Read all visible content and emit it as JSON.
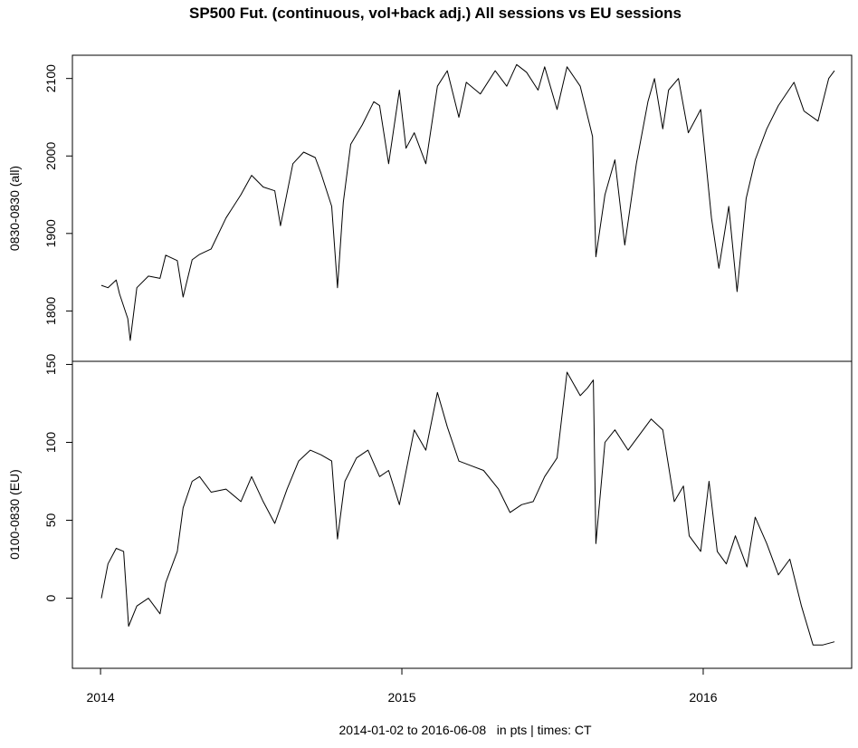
{
  "chart_data": [
    {
      "type": "line",
      "title": "SP500 Fut. (continuous, vol+back adj.) All sessions vs EU sessions",
      "xlabel": "2014-01-02 to 2016-06-08   in pts | times: CT",
      "ylabel": "0830-0830 (all)",
      "xlim": [
        "2014-01-02",
        "2016-06-08"
      ],
      "ylim": [
        1735,
        2130
      ],
      "x_ticks": [
        "2014",
        "2015",
        "2016"
      ],
      "y_ticks": [
        1800,
        1900,
        2000,
        2100
      ],
      "grid": false,
      "series": [
        {
          "color": "#000000",
          "x": [
            "2014-01-02",
            "2014-01-10",
            "2014-01-20",
            "2014-01-24",
            "2014-02-03",
            "2014-02-06",
            "2014-02-14",
            "2014-02-28",
            "2014-03-14",
            "2014-03-21",
            "2014-04-04",
            "2014-04-11",
            "2014-04-22",
            "2014-05-01",
            "2014-05-15",
            "2014-06-02",
            "2014-06-20",
            "2014-07-03",
            "2014-07-17",
            "2014-07-31",
            "2014-08-07",
            "2014-08-22",
            "2014-09-04",
            "2014-09-18",
            "2014-09-25",
            "2014-10-08",
            "2014-10-15",
            "2014-10-22",
            "2014-10-31",
            "2014-11-14",
            "2014-11-28",
            "2014-12-05",
            "2014-12-16",
            "2014-12-29",
            "2015-01-06",
            "2015-01-16",
            "2015-01-30",
            "2015-02-13",
            "2015-02-25",
            "2015-03-11",
            "2015-03-20",
            "2015-04-06",
            "2015-04-24",
            "2015-05-08",
            "2015-05-20",
            "2015-06-01",
            "2015-06-15",
            "2015-06-23",
            "2015-07-08",
            "2015-07-20",
            "2015-08-05",
            "2015-08-20",
            "2015-08-24",
            "2015-09-04",
            "2015-09-16",
            "2015-09-28",
            "2015-10-12",
            "2015-10-26",
            "2015-11-03",
            "2015-11-13",
            "2015-11-20",
            "2015-12-02",
            "2015-12-14",
            "2015-12-29",
            "2016-01-11",
            "2016-01-20",
            "2016-02-01",
            "2016-02-11",
            "2016-02-22",
            "2016-03-04",
            "2016-03-18",
            "2016-04-01",
            "2016-04-20",
            "2016-05-02",
            "2016-05-19",
            "2016-06-01",
            "2016-06-08"
          ],
          "y": [
            1833,
            1830,
            1840,
            1822,
            1790,
            1762,
            1830,
            1845,
            1842,
            1872,
            1865,
            1818,
            1866,
            1873,
            1880,
            1920,
            1950,
            1975,
            1960,
            1955,
            1910,
            1990,
            2005,
            1998,
            1978,
            1935,
            1830,
            1940,
            2015,
            2040,
            2070,
            2065,
            1990,
            2085,
            2010,
            2030,
            1990,
            2090,
            2110,
            2050,
            2095,
            2080,
            2110,
            2090,
            2118,
            2108,
            2085,
            2115,
            2060,
            2115,
            2090,
            2025,
            1870,
            1950,
            1995,
            1885,
            1990,
            2070,
            2100,
            2035,
            2085,
            2100,
            2030,
            2060,
            1920,
            1855,
            1935,
            1825,
            1945,
            1995,
            2035,
            2065,
            2095,
            2058,
            2045,
            2100,
            2110
          ]
        }
      ]
    },
    {
      "type": "line",
      "title": "",
      "xlabel": "",
      "ylabel": "0100-0830 (EU)",
      "xlim": [
        "2014-01-02",
        "2016-06-08"
      ],
      "ylim": [
        -45,
        152
      ],
      "x_ticks": [
        "2014",
        "2015",
        "2016"
      ],
      "y_ticks": [
        0,
        50,
        100,
        150
      ],
      "grid": false,
      "series": [
        {
          "color": "#000000",
          "x": [
            "2014-01-02",
            "2014-01-10",
            "2014-01-20",
            "2014-01-29",
            "2014-02-04",
            "2014-02-14",
            "2014-02-28",
            "2014-03-14",
            "2014-03-21",
            "2014-04-04",
            "2014-04-11",
            "2014-04-22",
            "2014-05-01",
            "2014-05-15",
            "2014-06-02",
            "2014-06-20",
            "2014-07-03",
            "2014-07-17",
            "2014-07-31",
            "2014-08-15",
            "2014-08-29",
            "2014-09-12",
            "2014-09-25",
            "2014-10-08",
            "2014-10-15",
            "2014-10-24",
            "2014-11-07",
            "2014-11-21",
            "2014-12-05",
            "2014-12-16",
            "2014-12-29",
            "2015-01-16",
            "2015-01-30",
            "2015-02-13",
            "2015-02-25",
            "2015-03-11",
            "2015-03-26",
            "2015-04-10",
            "2015-04-28",
            "2015-05-12",
            "2015-05-26",
            "2015-06-09",
            "2015-06-23",
            "2015-07-08",
            "2015-07-20",
            "2015-08-05",
            "2015-08-14",
            "2015-08-21",
            "2015-08-24",
            "2015-09-04",
            "2015-09-16",
            "2015-10-02",
            "2015-10-16",
            "2015-10-30",
            "2015-11-13",
            "2015-11-27",
            "2015-12-08",
            "2015-12-15",
            "2015-12-29",
            "2016-01-08",
            "2016-01-18",
            "2016-01-29",
            "2016-02-09",
            "2016-02-23",
            "2016-03-04",
            "2016-03-18",
            "2016-04-01",
            "2016-04-15",
            "2016-04-29",
            "2016-05-13",
            "2016-05-25",
            "2016-06-08"
          ],
          "y": [
            0,
            22,
            32,
            30,
            -18,
            -5,
            0,
            -10,
            10,
            30,
            58,
            75,
            78,
            68,
            70,
            62,
            78,
            62,
            48,
            70,
            88,
            95,
            92,
            88,
            38,
            75,
            90,
            95,
            78,
            82,
            60,
            108,
            95,
            132,
            110,
            88,
            85,
            82,
            70,
            55,
            60,
            62,
            78,
            90,
            145,
            130,
            135,
            140,
            35,
            100,
            108,
            95,
            105,
            115,
            108,
            62,
            72,
            40,
            30,
            75,
            30,
            22,
            40,
            20,
            52,
            35,
            15,
            25,
            -5,
            -30,
            -30,
            -28
          ]
        }
      ]
    }
  ]
}
